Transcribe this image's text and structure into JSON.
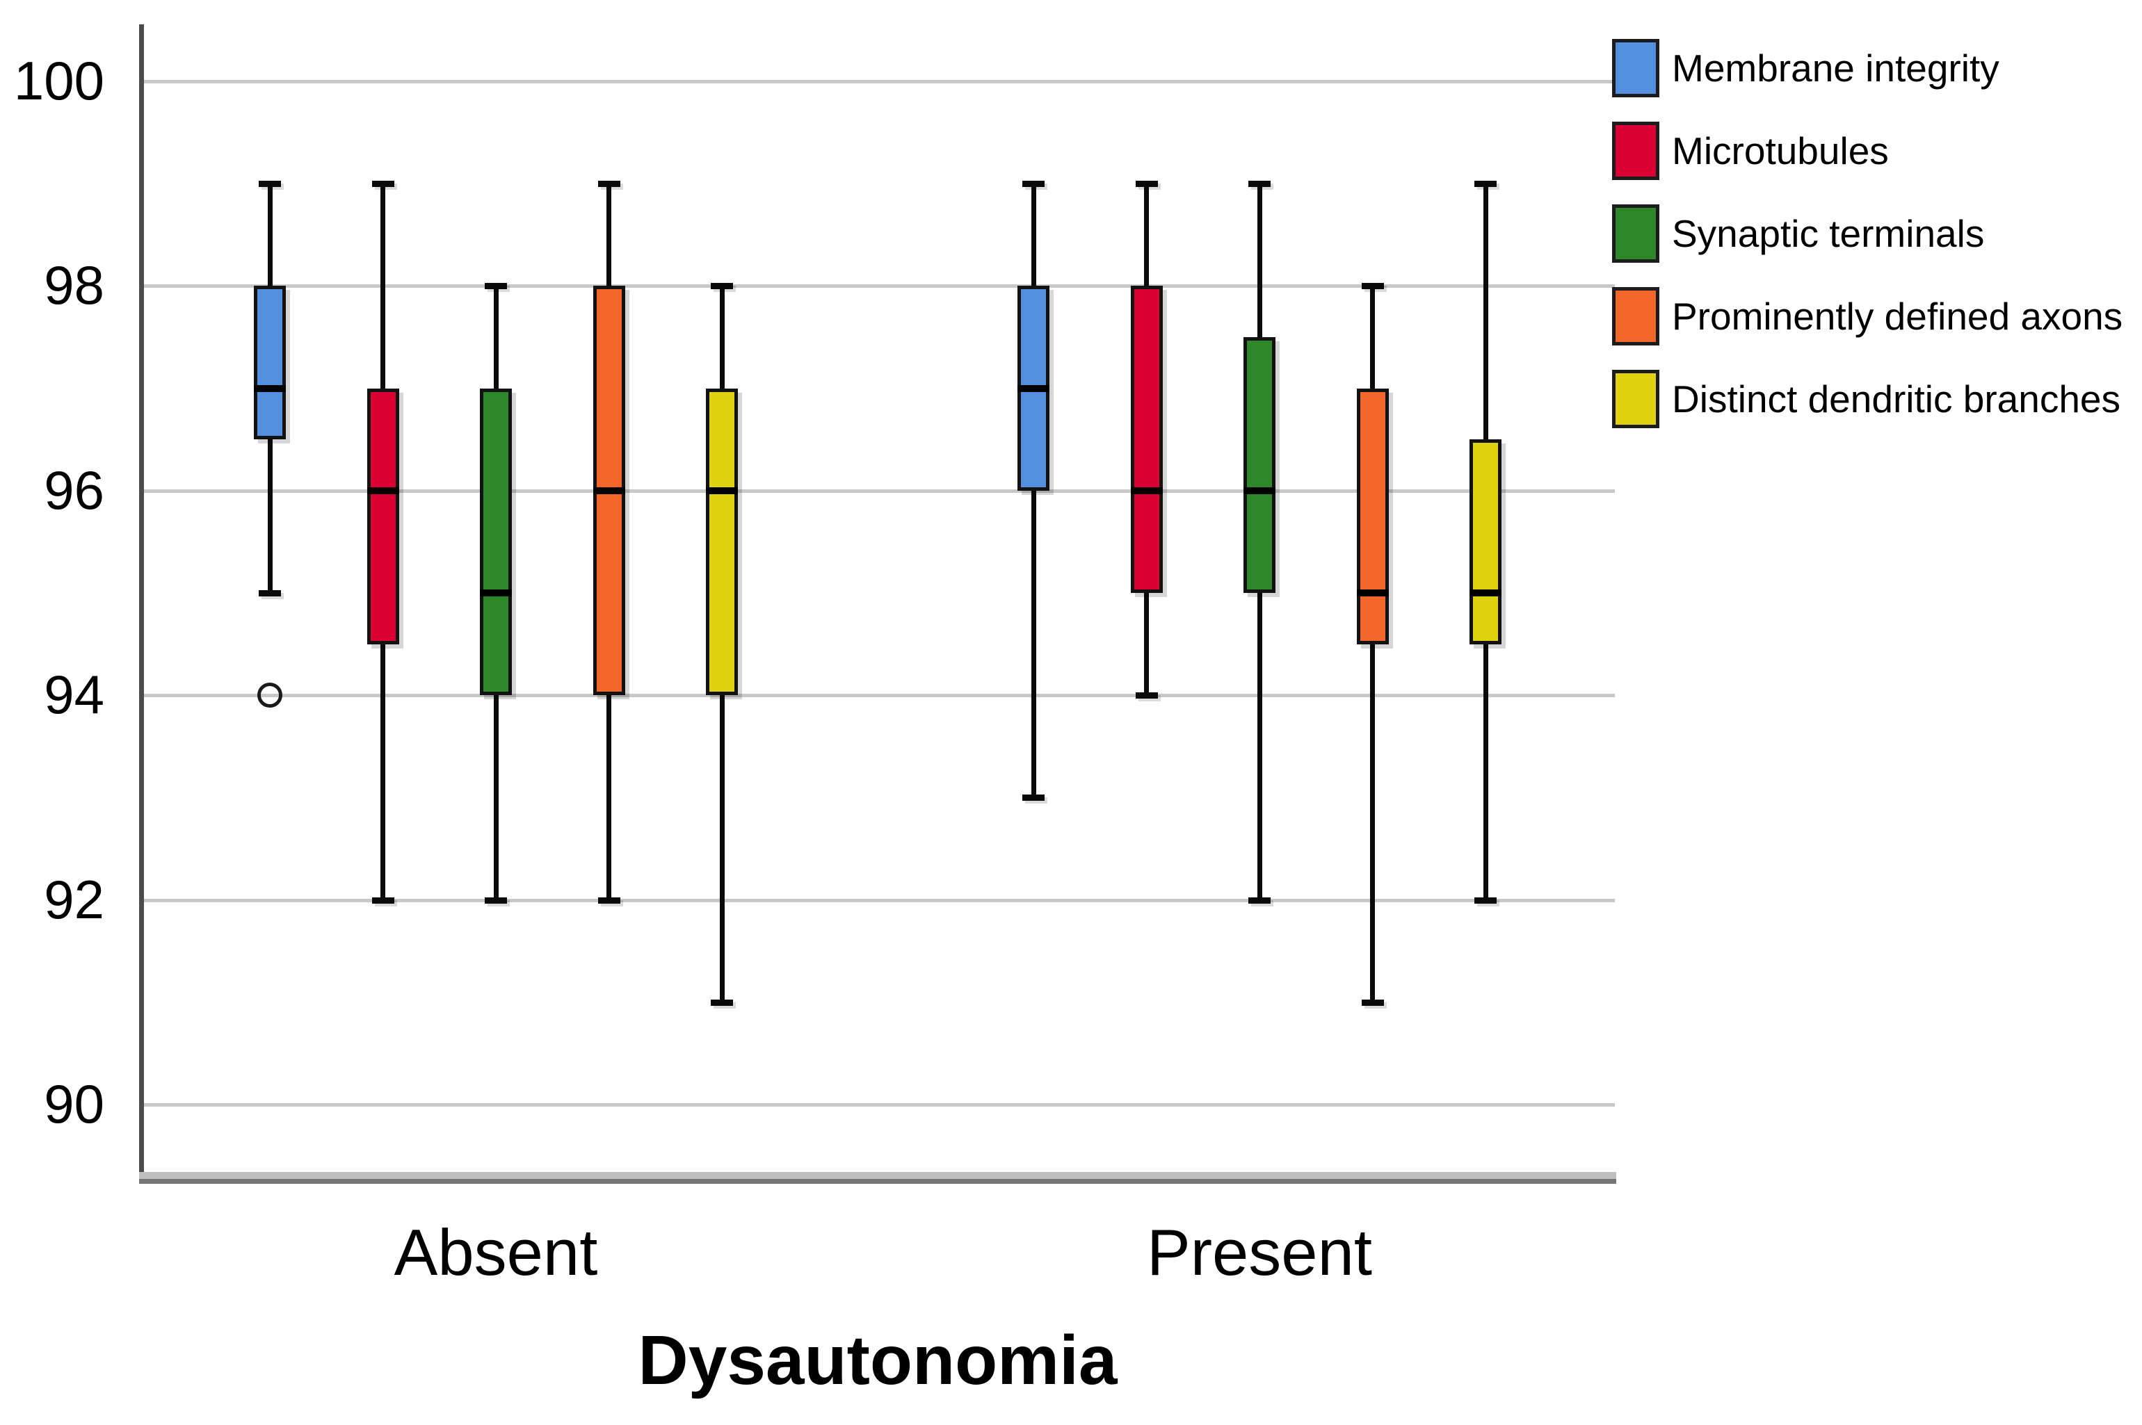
{
  "figure": {
    "background": "#ffffff"
  },
  "chart_data": {
    "type": "boxplot",
    "title": "",
    "xlabel": "Dysautonomia",
    "ylabel": "",
    "ylim": [
      89.3,
      100.6
    ],
    "yticks": [
      100,
      98,
      96,
      94,
      92,
      90
    ],
    "categories": [
      "Absent",
      "Present"
    ],
    "grid": "horizontal",
    "legend_position": "top-right",
    "series": [
      {
        "name": "Membrane integrity",
        "color": "#548FDE",
        "boxes": [
          {
            "category": "Absent",
            "min": 95,
            "q1": 96.5,
            "median": 97,
            "q3": 98,
            "max": 99,
            "outliers": [
              94
            ]
          },
          {
            "category": "Present",
            "min": 93,
            "q1": 96,
            "median": 97,
            "q3": 98,
            "max": 99,
            "outliers": []
          }
        ]
      },
      {
        "name": "Microtubules",
        "color": "#DB0032",
        "boxes": [
          {
            "category": "Absent",
            "min": 92,
            "q1": 94.5,
            "median": 96,
            "q3": 97,
            "max": 99,
            "outliers": []
          },
          {
            "category": "Present",
            "min": 94,
            "q1": 95,
            "median": 96,
            "q3": 98,
            "max": 99,
            "outliers": []
          }
        ]
      },
      {
        "name": "Synaptic terminals",
        "color": "#2E8728",
        "boxes": [
          {
            "category": "Absent",
            "min": 92,
            "q1": 94,
            "median": 95,
            "q3": 97,
            "max": 98,
            "outliers": []
          },
          {
            "category": "Present",
            "min": 92,
            "q1": 95,
            "median": 96,
            "q3": 97.5,
            "max": 99,
            "outliers": []
          }
        ]
      },
      {
        "name": "Prominently defined axons",
        "color": "#F2662A",
        "boxes": [
          {
            "category": "Absent",
            "min": 92,
            "q1": 94,
            "median": 96,
            "q3": 98,
            "max": 99,
            "outliers": []
          },
          {
            "category": "Present",
            "min": 91,
            "q1": 94.5,
            "median": 95,
            "q3": 97,
            "max": 98,
            "outliers": []
          }
        ]
      },
      {
        "name": "Distinct dendritic branches",
        "color": "#DFD311",
        "boxes": [
          {
            "category": "Absent",
            "min": 91,
            "q1": 94,
            "median": 96,
            "q3": 97,
            "max": 98,
            "outliers": []
          },
          {
            "category": "Present",
            "min": 92,
            "q1": 94.5,
            "median": 95,
            "q3": 96.5,
            "max": 99,
            "outliers": []
          }
        ]
      }
    ]
  }
}
